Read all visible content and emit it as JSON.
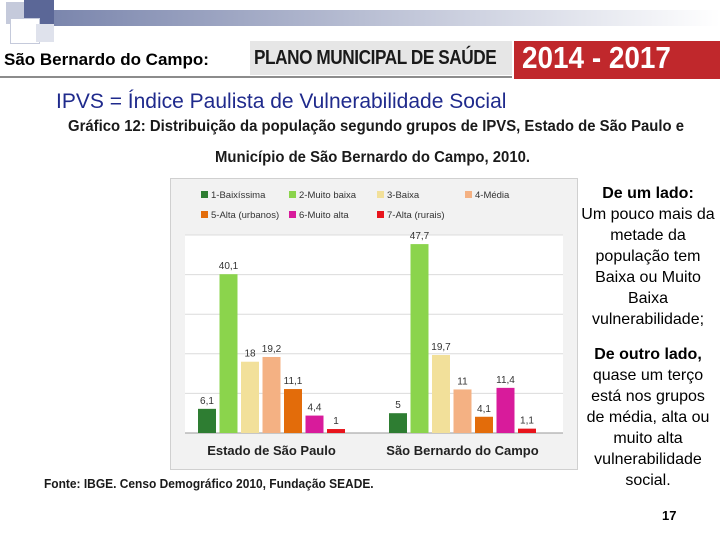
{
  "header": {
    "prefix": "São Bernardo do Campo:",
    "plan_title": "PLANO MUNICIPAL DE SAÚDE",
    "years": "2014 - 2017"
  },
  "subtitle": "IPVS = Índice Paulista de Vulnerabilidade Social",
  "right_panel": {
    "heading1": "De um lado:",
    "text1": "Um pouco mais da metade da população tem Baixa ou Muito Baixa vulnerabilidade;",
    "heading2": "De outro lado,",
    "text2": "quase um terço está nos grupos de média, alta ou muito alta vulnerabilidade social."
  },
  "page_number": "17",
  "colors": {
    "header_red": "#c0282c",
    "title_blue": "#1f2a8c"
  },
  "chart_data": {
    "type": "bar",
    "title_line1": "Gráfico 12: Distribuição da população segundo grupos de IPVS, Estado de São Paulo e",
    "title_line2": "Município de São Bernardo do Campo, 2010.",
    "source": "Fonte: IBGE. Censo Demográfico 2010, Fundação SEADE.",
    "categories": [
      "Estado de São Paulo",
      "São Bernardo do Campo"
    ],
    "ylim": [
      0,
      50
    ],
    "grid": true,
    "legend_position": "top",
    "series": [
      {
        "name": "1-Baixíssima",
        "color": "#2e7d32",
        "values": [
          6.1,
          5
        ],
        "labels": [
          "6,1",
          "5"
        ]
      },
      {
        "name": "2-Muito baixa",
        "color": "#8bd44c",
        "values": [
          40.1,
          47.7
        ],
        "labels": [
          "40,1",
          "47,7"
        ]
      },
      {
        "name": "3-Baixa",
        "color": "#f2e09a",
        "values": [
          18,
          19.7
        ],
        "labels": [
          "18",
          "19,7"
        ]
      },
      {
        "name": "4-Média",
        "color": "#f4b183",
        "values": [
          19.2,
          11
        ],
        "labels": [
          "19,2",
          "11"
        ]
      },
      {
        "name": "5-Alta (urbanos)",
        "color": "#e36c0a",
        "values": [
          11.1,
          4.1
        ],
        "labels": [
          "11,1",
          "4,1"
        ]
      },
      {
        "name": "6-Muito alta",
        "color": "#d81b9b",
        "values": [
          4.4,
          11.4
        ],
        "labels": [
          "4,4",
          "11,4"
        ]
      },
      {
        "name": "7-Alta (rurais)",
        "color": "#e8141c",
        "values": [
          1,
          1.1
        ],
        "labels": [
          "1",
          "1,1"
        ]
      }
    ]
  }
}
